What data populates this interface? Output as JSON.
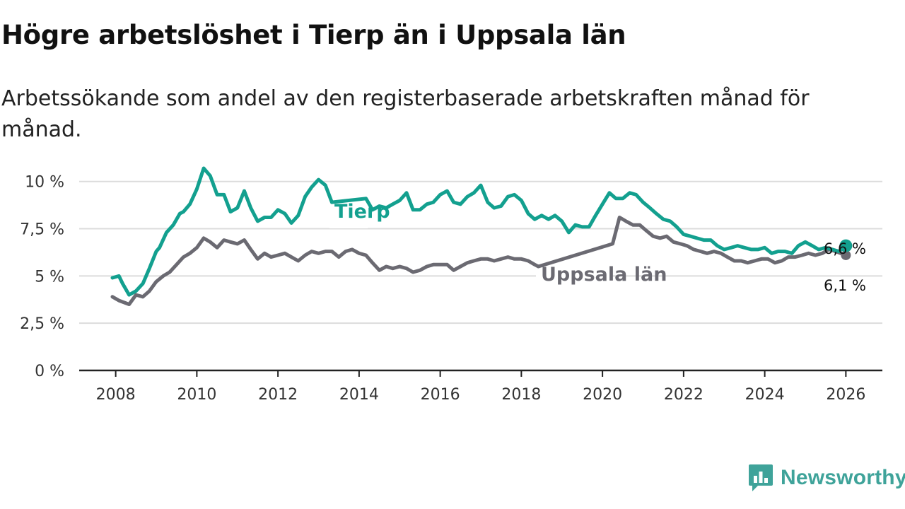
{
  "header": {
    "title": "Högre arbetslöshet i Tierp än i Uppsala län",
    "subtitle": "Arbetssökande som andel av den registerbaserade arbetskraften månad för månad."
  },
  "brand": {
    "name": "Newsworthy",
    "color": "#3fa39a",
    "icon": "bar-chart-icon"
  },
  "chart_data": {
    "type": "line",
    "title": "Högre arbetslöshet i Tierp än i Uppsala län",
    "xlabel": "",
    "ylabel": "",
    "xlim": [
      2007.1,
      2026.9
    ],
    "ylim": [
      0,
      11
    ],
    "grid": true,
    "x_ticks": [
      2008,
      2010,
      2012,
      2014,
      2016,
      2018,
      2020,
      2022,
      2024,
      2026
    ],
    "x_tick_labels": [
      "2008",
      "2010",
      "2012",
      "2014",
      "2016",
      "2018",
      "2020",
      "2022",
      "2024",
      "2026"
    ],
    "y_ticks": [
      0,
      2.5,
      5,
      7.5,
      10
    ],
    "y_tick_labels": [
      "0 %",
      "2,5 %",
      "5 %",
      "7,5 %",
      "10 %"
    ],
    "series": [
      {
        "name": "Tierp",
        "color": "#13a08f",
        "last_label": "6,6 %",
        "x": [
          2007.92,
          2008.08,
          2008.17,
          2008.33,
          2008.5,
          2008.67,
          2008.83,
          2009.0,
          2009.08,
          2009.25,
          2009.42,
          2009.58,
          2009.67,
          2009.83,
          2010.0,
          2010.17,
          2010.33,
          2010.5,
          2010.67,
          2010.83,
          2011.0,
          2011.17,
          2011.33,
          2011.5,
          2011.67,
          2011.83,
          2012.0,
          2012.17,
          2012.33,
          2012.5,
          2012.67,
          2012.83,
          2013.0,
          2013.17,
          2013.33,
          2014.17,
          2014.33,
          2014.5,
          2014.67,
          2014.83,
          2015.0,
          2015.17,
          2015.33,
          2015.5,
          2015.67,
          2015.83,
          2016.0,
          2016.17,
          2016.33,
          2016.5,
          2016.67,
          2016.83,
          2017.0,
          2017.17,
          2017.33,
          2017.5,
          2017.67,
          2017.83,
          2018.0,
          2018.17,
          2018.33,
          2018.5,
          2018.67,
          2018.83,
          2019.0,
          2019.17,
          2019.33,
          2019.5,
          2019.67,
          2019.83,
          2020.0,
          2020.17,
          2020.33,
          2020.5,
          2020.67,
          2020.83,
          2021.0,
          2021.17,
          2021.33,
          2021.5,
          2021.67,
          2021.83,
          2022.0,
          2022.17,
          2022.33,
          2022.5,
          2022.67,
          2022.83,
          2023.0,
          2023.17,
          2023.33,
          2023.5,
          2023.67,
          2023.83,
          2024.0,
          2024.17,
          2024.33,
          2024.5,
          2024.67,
          2024.83,
          2025.0,
          2025.17,
          2025.33,
          2025.5,
          2025.67,
          2025.83,
          2026.0
        ],
        "values": [
          4.9,
          5.0,
          4.6,
          4.0,
          4.2,
          4.6,
          5.4,
          6.3,
          6.5,
          7.3,
          7.7,
          8.3,
          8.4,
          8.8,
          9.6,
          10.7,
          10.3,
          9.3,
          9.3,
          8.4,
          8.6,
          9.5,
          8.6,
          7.9,
          8.1,
          8.1,
          8.5,
          8.3,
          7.8,
          8.2,
          9.2,
          9.7,
          10.1,
          9.8,
          8.9,
          9.1,
          8.5,
          8.7,
          8.6,
          8.8,
          9.0,
          9.4,
          8.5,
          8.5,
          8.8,
          8.9,
          9.3,
          9.5,
          8.9,
          8.8,
          9.2,
          9.4,
          9.8,
          8.9,
          8.6,
          8.7,
          9.2,
          9.3,
          9.0,
          8.3,
          8.0,
          8.2,
          8.0,
          8.2,
          7.9,
          7.3,
          7.7,
          7.6,
          7.6,
          8.2,
          8.8,
          9.4,
          9.1,
          9.1,
          9.4,
          9.3,
          8.9,
          8.6,
          8.3,
          8.0,
          7.9,
          7.6,
          7.2,
          7.1,
          7.0,
          6.9,
          6.9,
          6.6,
          6.4,
          6.5,
          6.6,
          6.5,
          6.4,
          6.4,
          6.5,
          6.2,
          6.3,
          6.3,
          6.2,
          6.6,
          6.8,
          6.6,
          6.4,
          6.5,
          6.4,
          6.3,
          6.6
        ]
      },
      {
        "name": "Uppsala län",
        "color": "#6b6a72",
        "last_label": "6,1 %",
        "x": [
          2007.92,
          2008.08,
          2008.33,
          2008.5,
          2008.67,
          2008.83,
          2009.0,
          2009.17,
          2009.33,
          2009.5,
          2009.67,
          2009.83,
          2010.0,
          2010.17,
          2010.33,
          2010.5,
          2010.67,
          2010.83,
          2011.0,
          2011.17,
          2011.33,
          2011.5,
          2011.67,
          2011.83,
          2012.0,
          2012.17,
          2012.33,
          2012.5,
          2012.67,
          2012.83,
          2013.0,
          2013.17,
          2013.33,
          2013.5,
          2013.67,
          2013.83,
          2014.0,
          2014.17,
          2014.33,
          2014.5,
          2014.67,
          2014.83,
          2015.0,
          2015.17,
          2015.33,
          2015.5,
          2015.67,
          2015.83,
          2016.0,
          2016.17,
          2016.33,
          2016.5,
          2016.67,
          2016.83,
          2017.0,
          2017.17,
          2017.33,
          2017.5,
          2017.67,
          2017.83,
          2018.0,
          2018.17,
          2018.33,
          2018.42,
          2020.25,
          2020.42,
          2020.58,
          2020.75,
          2020.92,
          2021.08,
          2021.25,
          2021.42,
          2021.58,
          2021.75,
          2021.92,
          2022.08,
          2022.25,
          2022.42,
          2022.58,
          2022.75,
          2022.92,
          2023.08,
          2023.25,
          2023.42,
          2023.58,
          2023.75,
          2023.92,
          2024.08,
          2024.25,
          2024.42,
          2024.58,
          2024.75,
          2024.92,
          2025.08,
          2025.25,
          2025.42,
          2025.58,
          2025.75,
          2026.0
        ],
        "values": [
          3.9,
          3.7,
          3.5,
          4.0,
          3.9,
          4.2,
          4.7,
          5.0,
          5.2,
          5.6,
          6.0,
          6.2,
          6.5,
          7.0,
          6.8,
          6.5,
          6.9,
          6.8,
          6.7,
          6.9,
          6.4,
          5.9,
          6.2,
          6.0,
          6.1,
          6.2,
          6.0,
          5.8,
          6.1,
          6.3,
          6.2,
          6.3,
          6.3,
          6.0,
          6.3,
          6.4,
          6.2,
          6.1,
          5.7,
          5.3,
          5.5,
          5.4,
          5.5,
          5.4,
          5.2,
          5.3,
          5.5,
          5.6,
          5.6,
          5.6,
          5.3,
          5.5,
          5.7,
          5.8,
          5.9,
          5.9,
          5.8,
          5.9,
          6.0,
          5.9,
          5.9,
          5.8,
          5.6,
          5.5,
          6.7,
          8.1,
          7.9,
          7.7,
          7.7,
          7.4,
          7.1,
          7.0,
          7.1,
          6.8,
          6.7,
          6.6,
          6.4,
          6.3,
          6.2,
          6.3,
          6.2,
          6.0,
          5.8,
          5.8,
          5.7,
          5.8,
          5.9,
          5.9,
          5.7,
          5.8,
          6.0,
          6.0,
          6.1,
          6.2,
          6.1,
          6.2,
          6.4,
          6.3,
          6.1
        ]
      }
    ],
    "annotations": [
      {
        "text": "Tierp",
        "series": "Tierp"
      },
      {
        "text": "Uppsala län",
        "series": "Uppsala län"
      }
    ]
  }
}
